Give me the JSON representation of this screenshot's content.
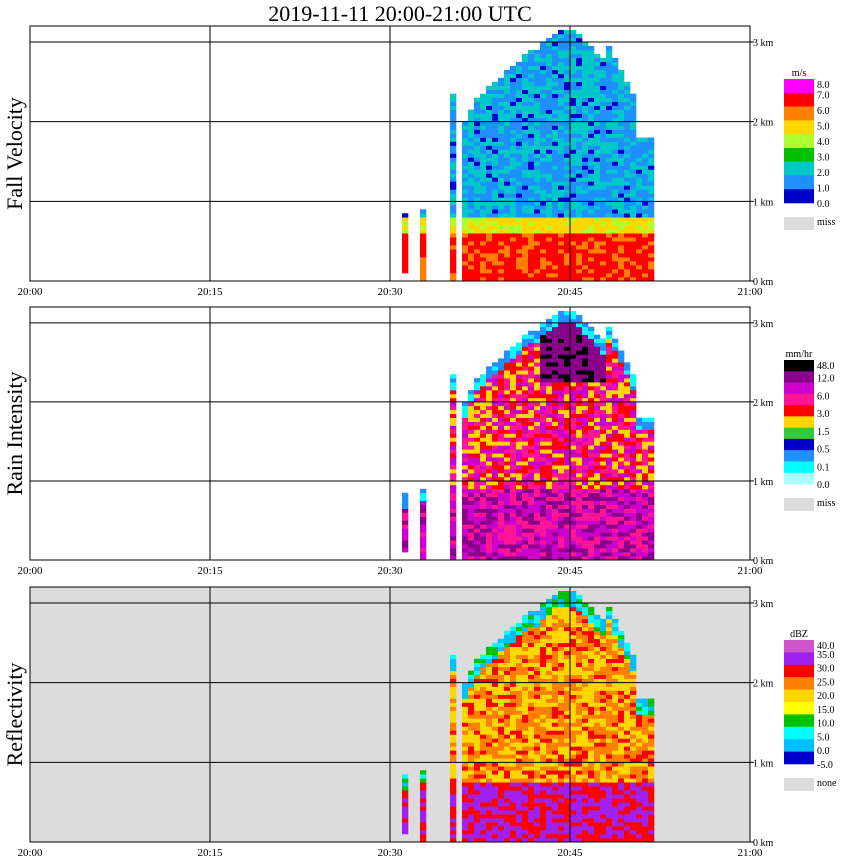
{
  "title": "2019-11-11   20:00-21:00 UTC",
  "colors": {
    "missing_gray": "#dcdcdc",
    "grid": "#000000",
    "background": "#ffffff"
  },
  "chart_data": [
    {
      "type": "heatmap",
      "panel_label": "Fall Velocity",
      "units": "m/s",
      "x_ticks": [
        "20:00",
        "20:15",
        "20:30",
        "20:45",
        "21:00"
      ],
      "x_range": [
        "20:00",
        "21:00"
      ],
      "y_ticks": [
        "0 km",
        "1 km",
        "2 km",
        "3 km"
      ],
      "y_range_km": [
        0,
        3.2
      ],
      "grid": true,
      "background": "#ffffff",
      "legend": {
        "labels": [
          "8.0",
          "7.0",
          "6.0",
          "5.0",
          "4.0",
          "3.0",
          "2.0",
          "1.0",
          "0.0"
        ],
        "colors": [
          "#ff00ff",
          "#ff0000",
          "#ff7f00",
          "#ffd700",
          "#adff2f",
          "#00c000",
          "#00c8c8",
          "#1e90ff",
          "#0000cd"
        ],
        "missing_label": "miss"
      }
    },
    {
      "type": "heatmap",
      "panel_label": "Rain Intensity",
      "units": "mm/hr",
      "x_ticks": [
        "20:00",
        "20:15",
        "20:30",
        "20:45",
        "21:00"
      ],
      "x_range": [
        "20:00",
        "21:00"
      ],
      "y_ticks": [
        "0 km",
        "1 km",
        "2 km",
        "3 km"
      ],
      "y_range_km": [
        0,
        3.2
      ],
      "grid": true,
      "background": "#ffffff",
      "legend": {
        "labels": [
          "48.0",
          "12.0",
          "6.0",
          "3.0",
          "1.5",
          "0.5",
          "0.1",
          "0.0"
        ],
        "colors": [
          "#000000",
          "#8b008b",
          "#cc00cc",
          "#ff1493",
          "#ff0000",
          "#ffd700",
          "#32cd32",
          "#0000cd",
          "#1e90ff",
          "#00ffff",
          "#aaffff"
        ],
        "missing_label": "miss"
      }
    },
    {
      "type": "heatmap",
      "panel_label": "Reflectivity",
      "units": "dBZ",
      "x_ticks": [
        "20:00",
        "20:15",
        "20:30",
        "20:45",
        "21:00"
      ],
      "x_range": [
        "20:00",
        "21:00"
      ],
      "y_ticks": [
        "0 km",
        "1 km",
        "2 km",
        "3 km"
      ],
      "y_range_km": [
        0,
        3.2
      ],
      "grid": true,
      "background": "#dcdcdc",
      "legend": {
        "labels": [
          "40.0",
          "35.0",
          "30.0",
          "25.0",
          "20.0",
          "15.0",
          "10.0",
          "5.0",
          "0.0",
          "-5.0"
        ],
        "colors": [
          "#cc55cc",
          "#a020f0",
          "#ff0000",
          "#ff8000",
          "#ffd700",
          "#ffff00",
          "#00c000",
          "#00ffff",
          "#00bfff",
          "#0000cd"
        ],
        "missing_label": "none"
      }
    }
  ]
}
